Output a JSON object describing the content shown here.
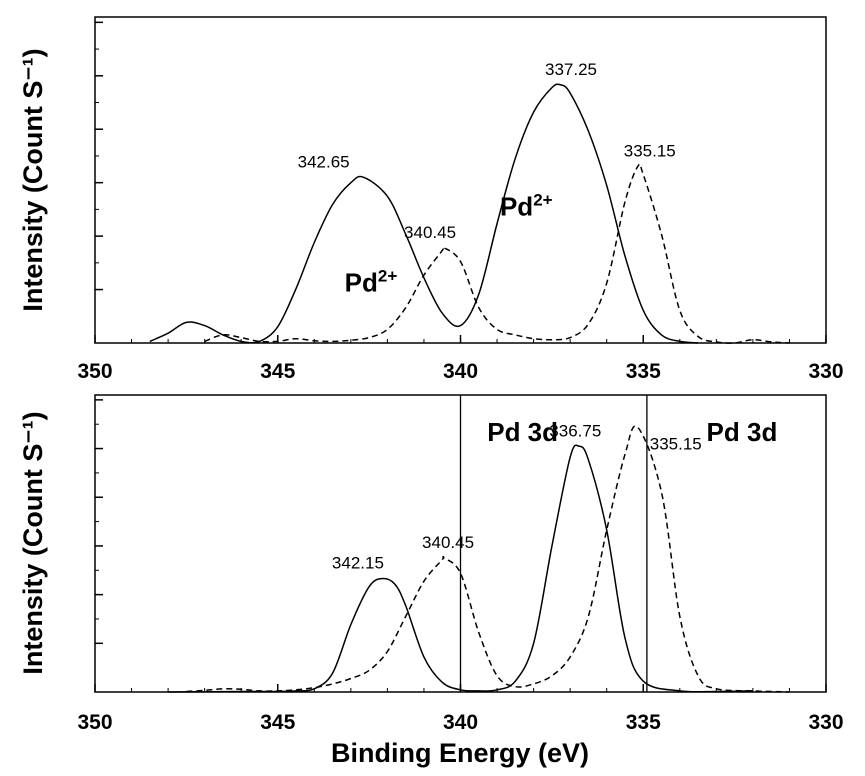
{
  "chart_data": [
    {
      "type": "line",
      "panel": "top",
      "xlabel": "",
      "ylabel": "Intensity (Count S⁻¹)",
      "xlim": [
        350,
        330
      ],
      "x_reversed": true,
      "xticks": [
        350,
        345,
        340,
        335,
        330
      ],
      "y_axis_tick_labels": false,
      "series": [
        {
          "style": "solid",
          "x": [
            348.5,
            348.0,
            347.5,
            347.0,
            346.5,
            346.0,
            345.5,
            345.0,
            344.5,
            344.0,
            343.5,
            343.0,
            342.65,
            342.0,
            341.5,
            341.0,
            340.5,
            340.0,
            339.5,
            339.0,
            338.5,
            338.0,
            337.5,
            337.25,
            337.0,
            336.5,
            336.0,
            335.5,
            335.0,
            334.5,
            334.0,
            333.5
          ],
          "values": [
            0.3,
            1.8,
            3.8,
            3.2,
            1.5,
            0.3,
            0.3,
            3.0,
            10.0,
            18.5,
            25.5,
            29.5,
            30.5,
            27.0,
            20.0,
            12.0,
            5.5,
            3.2,
            9.0,
            22.0,
            34.0,
            42.5,
            47.0,
            47.5,
            46.0,
            39.0,
            29.0,
            16.0,
            6.0,
            1.5,
            0.3,
            0.0
          ]
        },
        {
          "style": "dashed",
          "x": [
            347.0,
            346.5,
            346.0,
            345.5,
            345.0,
            344.5,
            344.0,
            343.5,
            343.0,
            342.5,
            342.0,
            341.5,
            341.0,
            340.5,
            340.45,
            340.0,
            339.5,
            339.0,
            338.5,
            338.0,
            337.5,
            337.0,
            336.5,
            336.0,
            335.5,
            335.15,
            335.0,
            334.5,
            334.0,
            333.5,
            333.0,
            332.5,
            332.0,
            331.5,
            331.0
          ],
          "values": [
            0.3,
            1.5,
            1.0,
            0.3,
            0.3,
            0.8,
            0.4,
            0.3,
            0.5,
            1.0,
            2.5,
            6.5,
            12.5,
            17.0,
            17.5,
            15.0,
            6.5,
            2.5,
            1.5,
            0.8,
            0.6,
            1.0,
            3.5,
            11.0,
            26.0,
            32.5,
            31.0,
            20.0,
            6.0,
            1.2,
            0.2,
            0.0,
            0.6,
            0.2,
            0.0
          ]
        }
      ],
      "peak_labels": [
        {
          "text": "342.65",
          "x": 342.65,
          "y": 30.5
        },
        {
          "text": "340.45",
          "x": 340.45,
          "y": 17.5
        },
        {
          "text": "337.25",
          "x": 337.25,
          "y": 47.5
        },
        {
          "text": "335.15",
          "x": 335.15,
          "y": 32.5
        }
      ],
      "annotations": [
        {
          "text": "Pd",
          "sup": "2+",
          "x": 342.45,
          "y": 9.5
        },
        {
          "text": "Pd",
          "sup": "2+",
          "x": 338.2,
          "y": 23.5
        }
      ],
      "ylim": [
        0,
        60
      ]
    },
    {
      "type": "line",
      "panel": "bottom",
      "xlabel": "Binding Energy (eV)",
      "ylabel": "Intensity (Count S⁻¹)",
      "xlim": [
        350,
        330
      ],
      "x_reversed": true,
      "xticks": [
        350,
        345,
        340,
        335,
        330
      ],
      "y_axis_tick_labels": false,
      "series": [
        {
          "style": "solid",
          "x": [
            348.0,
            346.0,
            345.0,
            344.5,
            344.0,
            343.5,
            343.0,
            342.5,
            342.15,
            341.8,
            341.5,
            341.0,
            340.5,
            340.0,
            339.5,
            339.0,
            338.5,
            338.0,
            337.5,
            337.0,
            336.75,
            336.5,
            336.0,
            335.5,
            335.0,
            334.0,
            333.0,
            332.0
          ],
          "values": [
            0.0,
            0.1,
            0.1,
            0.2,
            0.6,
            3.5,
            12.5,
            19.5,
            21.0,
            20.0,
            16.0,
            6.5,
            1.8,
            0.4,
            0.2,
            0.4,
            2.0,
            9.0,
            27.0,
            43.5,
            45.5,
            43.0,
            30.0,
            10.0,
            2.0,
            0.2,
            0.1,
            0.2
          ]
        },
        {
          "style": "dashed",
          "x": [
            347.5,
            347.0,
            346.5,
            346.0,
            345.5,
            345.0,
            344.5,
            344.0,
            343.5,
            343.0,
            342.5,
            342.0,
            341.5,
            341.0,
            340.5,
            340.45,
            340.0,
            339.5,
            339.0,
            338.5,
            338.0,
            337.5,
            337.0,
            336.5,
            336.0,
            335.5,
            335.15,
            334.5,
            334.0,
            333.5,
            333.0,
            332.0,
            331.0
          ],
          "values": [
            0.1,
            0.3,
            0.6,
            0.5,
            0.2,
            0.2,
            0.4,
            0.8,
            1.5,
            2.5,
            4.0,
            7.5,
            14.0,
            20.5,
            24.5,
            24.8,
            22.0,
            11.0,
            3.0,
            1.0,
            1.5,
            3.0,
            6.5,
            14.0,
            30.0,
            44.0,
            49.0,
            37.0,
            14.0,
            3.0,
            0.6,
            0.2,
            0.0
          ]
        }
      ],
      "vlines": [
        340.0,
        334.9
      ],
      "peak_labels": [
        {
          "text": "342.15",
          "x": 342.15,
          "y": 21.0
        },
        {
          "text": "340.45",
          "x": 340.45,
          "y": 24.8
        },
        {
          "text": "336.75",
          "x": 336.75,
          "y": 45.5
        },
        {
          "text": "335.15",
          "x": 335.15,
          "y": 49.0
        }
      ],
      "annotations": [
        {
          "text": "Pd 3d",
          "x": 338.3,
          "y": 46.5
        },
        {
          "text": "Pd 3d",
          "x": 332.3,
          "y": 46.5
        }
      ],
      "ylim": [
        0,
        55
      ]
    }
  ]
}
